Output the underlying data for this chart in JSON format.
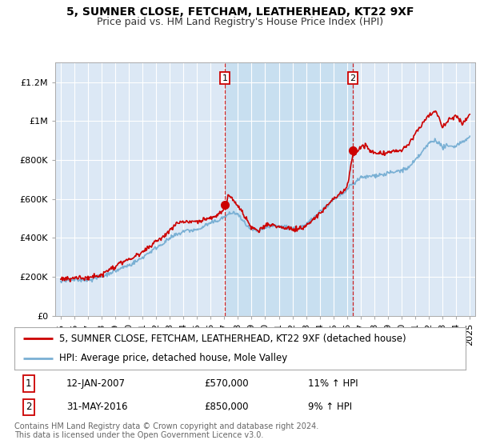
{
  "title": "5, SUMNER CLOSE, FETCHAM, LEATHERHEAD, KT22 9XF",
  "subtitle": "Price paid vs. HM Land Registry's House Price Index (HPI)",
  "background_color": "#ffffff",
  "plot_bg_color": "#dce8f5",
  "y_ticks": [
    0,
    200000,
    400000,
    600000,
    800000,
    1000000,
    1200000
  ],
  "y_tick_labels": [
    "£0",
    "£200K",
    "£400K",
    "£600K",
    "£800K",
    "£1M",
    "£1.2M"
  ],
  "ylim": [
    0,
    1300000
  ],
  "xlim_start": 1994.6,
  "xlim_end": 2025.4,
  "x_tick_years": [
    1995,
    1996,
    1997,
    1998,
    1999,
    2000,
    2001,
    2002,
    2003,
    2004,
    2005,
    2006,
    2007,
    2008,
    2009,
    2010,
    2011,
    2012,
    2013,
    2014,
    2015,
    2016,
    2017,
    2018,
    2019,
    2020,
    2021,
    2022,
    2023,
    2024,
    2025
  ],
  "sale1_x": 2007.04,
  "sale1_y": 570000,
  "sale2_x": 2016.42,
  "sale2_y": 850000,
  "sale_color": "#cc0000",
  "hpi_color": "#7ab0d4",
  "shade_color": "#c8dff0",
  "legend_sale_label": "5, SUMNER CLOSE, FETCHAM, LEATHERHEAD, KT22 9XF (detached house)",
  "legend_hpi_label": "HPI: Average price, detached house, Mole Valley",
  "annotation1_date": "12-JAN-2007",
  "annotation1_price": "£570,000",
  "annotation1_hpi": "11% ↑ HPI",
  "annotation2_date": "31-MAY-2016",
  "annotation2_price": "£850,000",
  "annotation2_hpi": "9% ↑ HPI",
  "footer": "Contains HM Land Registry data © Crown copyright and database right 2024.\nThis data is licensed under the Open Government Licence v3.0.",
  "title_fontsize": 10,
  "subtitle_fontsize": 9,
  "tick_fontsize": 8,
  "legend_fontsize": 8.5,
  "annot_fontsize": 8.5,
  "footer_fontsize": 7
}
